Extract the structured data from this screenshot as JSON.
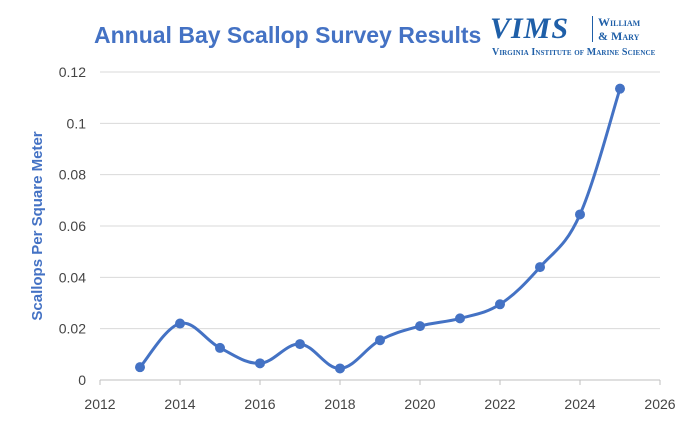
{
  "logo": {
    "mark": "VIMS",
    "line1": "William",
    "line2": "& Mary",
    "subtitle": "Virginia Institute of Marine Science"
  },
  "colors": {
    "title": "#4472C4",
    "series": "#4472C4",
    "grid": "#D9D9D9",
    "axis_text": "#444444",
    "logo": "#1F5FA8"
  },
  "chart_data": {
    "type": "line",
    "title": "Annual Bay Scallop Survey Results",
    "ylabel": "Scallops Per Square Meter",
    "xlabel": "",
    "xlim": [
      2012,
      2026
    ],
    "ylim": [
      0,
      0.12
    ],
    "xticks": [
      "2012",
      "2014",
      "2016",
      "2018",
      "2020",
      "2022",
      "2024",
      "2026"
    ],
    "yticks": [
      "0",
      "0.02",
      "0.04",
      "0.06",
      "0.08",
      "0.1",
      "0.12"
    ],
    "grid": "horizontal",
    "series": [
      {
        "x": [
          2013,
          2014,
          2015,
          2016,
          2017,
          2018,
          2019,
          2020,
          2021,
          2022,
          2023,
          2024,
          2025
        ],
        "y": [
          0.005,
          0.022,
          0.0125,
          0.0065,
          0.014,
          0.0045,
          0.0155,
          0.021,
          0.024,
          0.0295,
          0.044,
          0.0645,
          0.1135
        ]
      }
    ]
  }
}
